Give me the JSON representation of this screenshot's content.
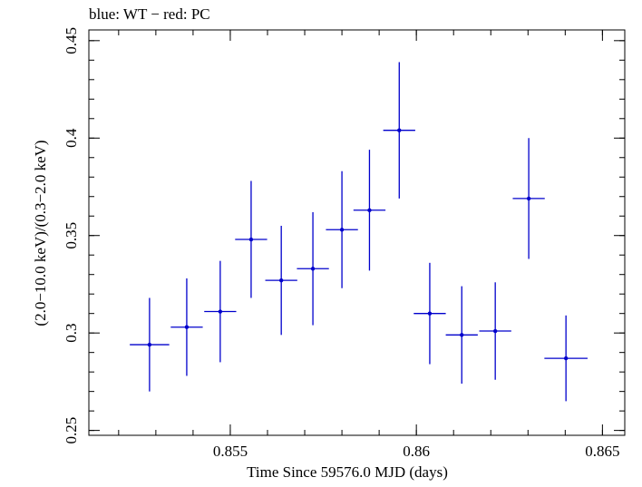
{
  "chart_data": {
    "type": "scatter",
    "title": "blue: WT − red: PC",
    "xlabel": "Time Since 59576.0 MJD (days)",
    "ylabel": "(2.0−10.0 keV)/(0.3−2.0 keV)",
    "xlim": [
      0.8512,
      0.8656
    ],
    "ylim": [
      0.2475,
      0.4555
    ],
    "x_ticks": [
      {
        "value": 0.855,
        "label": "0.855"
      },
      {
        "value": 0.86,
        "label": "0.86"
      },
      {
        "value": 0.865,
        "label": "0.865"
      }
    ],
    "y_ticks": [
      {
        "value": 0.25,
        "label": "0.25"
      },
      {
        "value": 0.3,
        "label": "0.3"
      },
      {
        "value": 0.35,
        "label": "0.35"
      },
      {
        "value": 0.4,
        "label": "0.4"
      },
      {
        "value": 0.45,
        "label": "0.45"
      }
    ],
    "x_minor_step": 0.001,
    "y_minor_step": 0.01,
    "grid": false,
    "series": [
      {
        "color": "#0000cc",
        "points": [
          {
            "x": 0.85283,
            "y": 0.294,
            "xerr": 0.00053,
            "yerr_low": 0.024,
            "yerr_high": 0.024
          },
          {
            "x": 0.85383,
            "y": 0.303,
            "xerr": 0.00043,
            "yerr_low": 0.025,
            "yerr_high": 0.025
          },
          {
            "x": 0.85473,
            "y": 0.311,
            "xerr": 0.00043,
            "yerr_low": 0.026,
            "yerr_high": 0.026
          },
          {
            "x": 0.85556,
            "y": 0.348,
            "xerr": 0.00043,
            "yerr_low": 0.03,
            "yerr_high": 0.03
          },
          {
            "x": 0.85637,
            "y": 0.327,
            "xerr": 0.00043,
            "yerr_low": 0.028,
            "yerr_high": 0.028
          },
          {
            "x": 0.85722,
            "y": 0.333,
            "xerr": 0.00043,
            "yerr_low": 0.029,
            "yerr_high": 0.029
          },
          {
            "x": 0.858,
            "y": 0.353,
            "xerr": 0.00043,
            "yerr_low": 0.03,
            "yerr_high": 0.03
          },
          {
            "x": 0.85874,
            "y": 0.363,
            "xerr": 0.00043,
            "yerr_low": 0.031,
            "yerr_high": 0.031
          },
          {
            "x": 0.85954,
            "y": 0.404,
            "xerr": 0.00043,
            "yerr_low": 0.035,
            "yerr_high": 0.035
          },
          {
            "x": 0.86036,
            "y": 0.31,
            "xerr": 0.00043,
            "yerr_low": 0.026,
            "yerr_high": 0.026
          },
          {
            "x": 0.86122,
            "y": 0.299,
            "xerr": 0.00043,
            "yerr_low": 0.025,
            "yerr_high": 0.025
          },
          {
            "x": 0.86212,
            "y": 0.301,
            "xerr": 0.00043,
            "yerr_low": 0.025,
            "yerr_high": 0.025
          },
          {
            "x": 0.86302,
            "y": 0.369,
            "xerr": 0.00043,
            "yerr_low": 0.031,
            "yerr_high": 0.031
          },
          {
            "x": 0.86402,
            "y": 0.287,
            "xerr": 0.00058,
            "yerr_low": 0.022,
            "yerr_high": 0.022
          }
        ]
      }
    ]
  }
}
